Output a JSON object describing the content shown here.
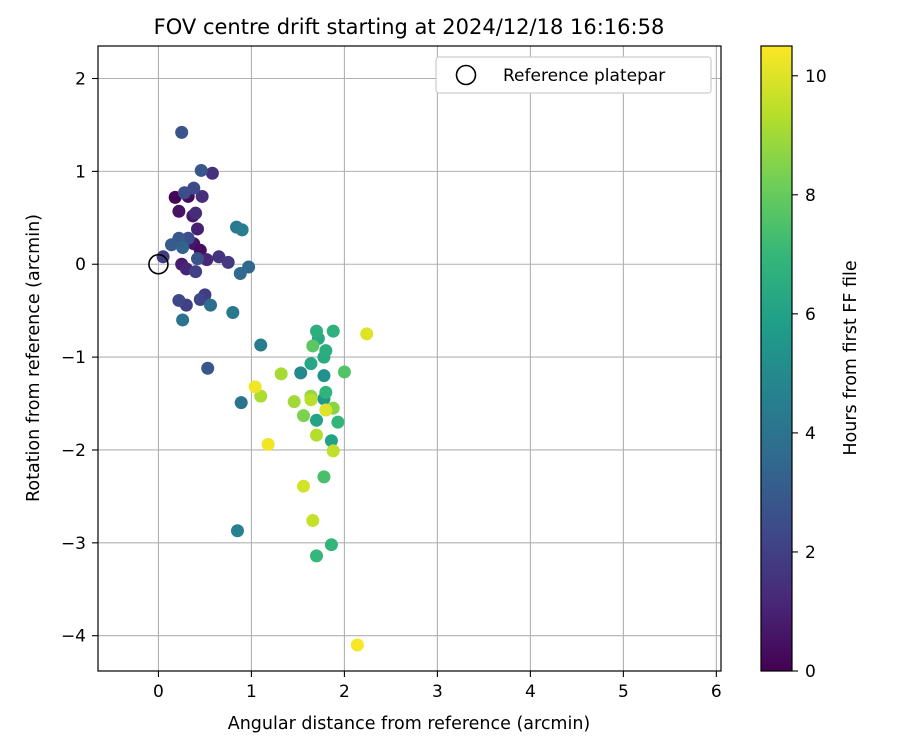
{
  "chart_data": {
    "type": "scatter",
    "title": "FOV centre drift starting at 2024/12/18 16:16:58",
    "xlabel": "Angular distance from reference (arcmin)",
    "ylabel": "Rotation from reference (arcmin)",
    "xlim": [
      -0.65,
      6.05
    ],
    "ylim": [
      -4.38,
      2.35
    ],
    "xticks": [
      0,
      1,
      2,
      3,
      4,
      5,
      6
    ],
    "yticks": [
      2,
      1,
      0,
      -1,
      -2,
      -3,
      -4
    ],
    "ytick_labels": [
      "2",
      "1",
      "0",
      "−1",
      "−2",
      "−3",
      "−4"
    ],
    "grid": true,
    "legend": {
      "placement": "upper-right",
      "entries": [
        "Reference platepar"
      ]
    },
    "reference": {
      "name": "Reference platepar",
      "x": 0,
      "y": 0
    },
    "colorbar": {
      "label": "Hours from first FF file",
      "range": [
        0,
        10.5
      ],
      "ticks": [
        0,
        2,
        4,
        6,
        8,
        10
      ],
      "colormap": "viridis",
      "stops": [
        "#440154",
        "#482878",
        "#3e4989",
        "#31688e",
        "#26828e",
        "#1f9e89",
        "#35b779",
        "#6ece58",
        "#b5de2b",
        "#fde725"
      ]
    },
    "points": [
      {
        "x": 0.18,
        "y": 0.72,
        "t": 0.1
      },
      {
        "x": 0.32,
        "y": 0.73,
        "t": 0.3
      },
      {
        "x": 0.22,
        "y": 0.57,
        "t": 0.5
      },
      {
        "x": 0.37,
        "y": 0.52,
        "t": 0.7
      },
      {
        "x": 0.42,
        "y": 0.38,
        "t": 0.9
      },
      {
        "x": 0.38,
        "y": 0.22,
        "t": 0.6
      },
      {
        "x": 0.45,
        "y": 0.15,
        "t": 0.4
      },
      {
        "x": 0.25,
        "y": 0.0,
        "t": 0.8
      },
      {
        "x": 0.3,
        "y": -0.05,
        "t": 1.1
      },
      {
        "x": 0.52,
        "y": 0.05,
        "t": 1.2
      },
      {
        "x": 0.4,
        "y": 0.55,
        "t": 1.3
      },
      {
        "x": 0.47,
        "y": 0.73,
        "t": 1.4
      },
      {
        "x": 0.58,
        "y": 0.98,
        "t": 1.5
      },
      {
        "x": 0.65,
        "y": 0.08,
        "t": 1.6
      },
      {
        "x": 0.75,
        "y": 0.02,
        "t": 1.8
      },
      {
        "x": 0.05,
        "y": 0.08,
        "t": 1.9
      },
      {
        "x": 0.4,
        "y": -0.08,
        "t": 2.0
      },
      {
        "x": 0.5,
        "y": -0.33,
        "t": 1.9
      },
      {
        "x": 0.45,
        "y": -0.38,
        "t": 2.2
      },
      {
        "x": 0.3,
        "y": -0.44,
        "t": 2.0
      },
      {
        "x": 0.22,
        "y": -0.39,
        "t": 2.3
      },
      {
        "x": 0.38,
        "y": 0.82,
        "t": 2.4
      },
      {
        "x": 0.28,
        "y": 0.77,
        "t": 2.5
      },
      {
        "x": 0.25,
        "y": 1.42,
        "t": 2.8
      },
      {
        "x": 0.46,
        "y": 1.01,
        "t": 2.9
      },
      {
        "x": 0.32,
        "y": 0.28,
        "t": 2.6
      },
      {
        "x": 0.22,
        "y": 0.28,
        "t": 2.9
      },
      {
        "x": 0.42,
        "y": 0.06,
        "t": 2.7
      },
      {
        "x": 0.14,
        "y": 0.21,
        "t": 3.0
      },
      {
        "x": 0.53,
        "y": -1.12,
        "t": 2.9
      },
      {
        "x": 0.26,
        "y": 0.18,
        "t": 3.4
      },
      {
        "x": 0.97,
        "y": -0.03,
        "t": 3.5
      },
      {
        "x": 0.88,
        "y": -0.1,
        "t": 3.6
      },
      {
        "x": 0.56,
        "y": -0.44,
        "t": 3.8
      },
      {
        "x": 0.8,
        "y": -0.52,
        "t": 4.2
      },
      {
        "x": 0.26,
        "y": -0.6,
        "t": 4.0
      },
      {
        "x": 0.84,
        "y": 0.4,
        "t": 4.3
      },
      {
        "x": 0.9,
        "y": 0.37,
        "t": 4.5
      },
      {
        "x": 0.89,
        "y": -1.49,
        "t": 4.0
      },
      {
        "x": 1.1,
        "y": -0.87,
        "t": 4.4
      },
      {
        "x": 0.85,
        "y": -2.87,
        "t": 4.6
      },
      {
        "x": 1.53,
        "y": -1.17,
        "t": 4.9
      },
      {
        "x": 1.78,
        "y": -1.2,
        "t": 5.3
      },
      {
        "x": 1.78,
        "y": -1.45,
        "t": 5.6
      },
      {
        "x": 1.86,
        "y": -1.9,
        "t": 6.0
      },
      {
        "x": 1.7,
        "y": -1.68,
        "t": 6.1
      },
      {
        "x": 1.64,
        "y": -1.07,
        "t": 6.2
      },
      {
        "x": 1.72,
        "y": -0.8,
        "t": 6.3
      },
      {
        "x": 1.78,
        "y": -1.0,
        "t": 6.4
      },
      {
        "x": 1.8,
        "y": -0.93,
        "t": 6.5
      },
      {
        "x": 1.7,
        "y": -0.72,
        "t": 6.6
      },
      {
        "x": 1.88,
        "y": -0.72,
        "t": 6.7
      },
      {
        "x": 1.8,
        "y": -1.38,
        "t": 6.8
      },
      {
        "x": 1.93,
        "y": -1.7,
        "t": 6.9
      },
      {
        "x": 1.86,
        "y": -3.02,
        "t": 6.9
      },
      {
        "x": 1.7,
        "y": -3.14,
        "t": 7.0
      },
      {
        "x": 1.78,
        "y": -2.29,
        "t": 7.4
      },
      {
        "x": 2.0,
        "y": -1.16,
        "t": 7.6
      },
      {
        "x": 1.66,
        "y": -0.88,
        "t": 7.8
      },
      {
        "x": 1.56,
        "y": -1.63,
        "t": 8.4
      },
      {
        "x": 1.88,
        "y": -1.55,
        "t": 8.6
      },
      {
        "x": 1.64,
        "y": -1.42,
        "t": 8.8
      },
      {
        "x": 1.46,
        "y": -1.48,
        "t": 9.0
      },
      {
        "x": 1.32,
        "y": -1.18,
        "t": 9.1
      },
      {
        "x": 1.1,
        "y": -1.42,
        "t": 9.2
      },
      {
        "x": 1.7,
        "y": -1.84,
        "t": 9.3
      },
      {
        "x": 1.64,
        "y": -1.46,
        "t": 9.4
      },
      {
        "x": 1.88,
        "y": -2.01,
        "t": 9.5
      },
      {
        "x": 1.66,
        "y": -2.76,
        "t": 9.6
      },
      {
        "x": 1.56,
        "y": -2.39,
        "t": 9.8
      },
      {
        "x": 1.8,
        "y": -1.57,
        "t": 10.0
      },
      {
        "x": 2.24,
        "y": -0.75,
        "t": 10.0
      },
      {
        "x": 1.04,
        "y": -1.32,
        "t": 10.3
      },
      {
        "x": 1.18,
        "y": -1.94,
        "t": 10.3
      },
      {
        "x": 2.14,
        "y": -4.1,
        "t": 10.4
      }
    ]
  }
}
